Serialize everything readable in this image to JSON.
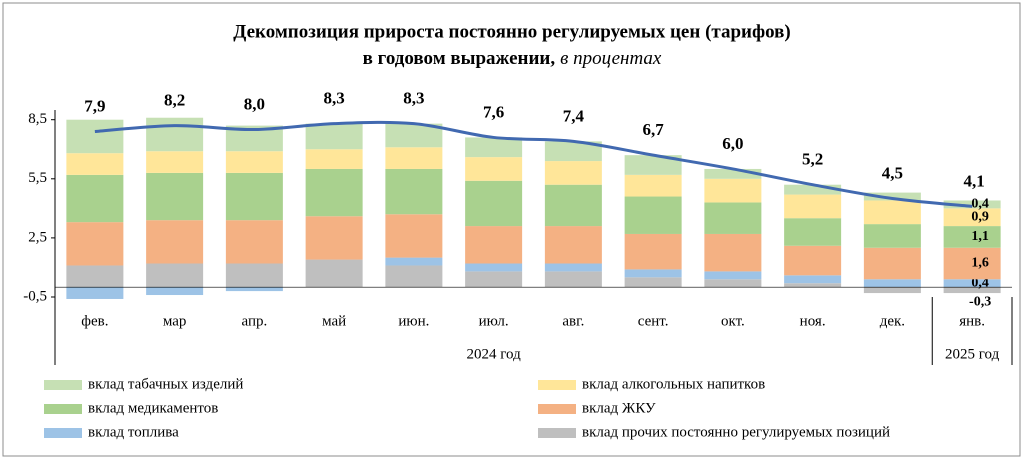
{
  "chart_data": {
    "type": "stacked_bar_line",
    "title": [
      "Декомпозиция прироста постоянно регулируемых цен (тарифов)",
      "в годовом выражении,"
    ],
    "subtitle": "в процентах",
    "categories": [
      "фев.",
      "мар",
      "апр.",
      "май",
      "июн.",
      "июл.",
      "авг.",
      "сент.",
      "окт.",
      "ноя.",
      "дек.",
      "янв."
    ],
    "groups": [
      {
        "label": "2024 год",
        "count": 11
      },
      {
        "label": "2025 год",
        "count": 1
      }
    ],
    "ylim": [
      -0.5,
      9.5
    ],
    "yticks": [
      {
        "value": -0.5,
        "label": "-0,5"
      },
      {
        "value": 2.5,
        "label": "2,5"
      },
      {
        "value": 5.5,
        "label": "5,5"
      },
      {
        "value": 8.5,
        "label": "8,5"
      }
    ],
    "series": [
      {
        "name": "вклад прочих постоянно регулируемых позиций",
        "color": "#bfbfbf",
        "values": [
          1.1,
          1.2,
          1.2,
          1.4,
          1.1,
          0.8,
          0.8,
          0.5,
          0.4,
          0.2,
          -0.3,
          -0.3
        ],
        "value_labels": [
          null,
          null,
          null,
          null,
          null,
          null,
          null,
          null,
          null,
          null,
          null,
          "-0,3"
        ]
      },
      {
        "name": "вклад топлива",
        "color": "#9dc3e6",
        "values": [
          -0.6,
          -0.4,
          -0.2,
          0.0,
          0.4,
          0.4,
          0.4,
          0.4,
          0.4,
          0.4,
          0.4,
          0.4
        ],
        "value_labels": [
          null,
          null,
          null,
          null,
          null,
          null,
          null,
          null,
          null,
          null,
          null,
          "0,4"
        ]
      },
      {
        "name": "вклад ЖКУ",
        "color": "#f4b183",
        "values": [
          2.2,
          2.2,
          2.2,
          2.2,
          2.2,
          1.9,
          1.9,
          1.8,
          1.9,
          1.5,
          1.6,
          1.6
        ],
        "value_labels": [
          null,
          null,
          null,
          null,
          null,
          null,
          null,
          null,
          null,
          null,
          null,
          "1,6"
        ]
      },
      {
        "name": "вклад медикаментов",
        "color": "#a9d18e",
        "values": [
          2.4,
          2.4,
          2.4,
          2.4,
          2.3,
          2.3,
          2.1,
          1.9,
          1.6,
          1.4,
          1.2,
          1.1
        ],
        "value_labels": [
          null,
          null,
          null,
          null,
          null,
          null,
          null,
          null,
          null,
          null,
          null,
          "1,1"
        ]
      },
      {
        "name": "вклад алкогольных напитков",
        "color": "#ffe699",
        "values": [
          1.1,
          1.1,
          1.1,
          1.0,
          1.1,
          1.2,
          1.2,
          1.1,
          1.2,
          1.2,
          1.2,
          0.9
        ],
        "value_labels": [
          null,
          null,
          null,
          null,
          null,
          null,
          null,
          null,
          null,
          null,
          null,
          "0,9"
        ]
      },
      {
        "name": "вклад табачных изделий",
        "color": "#c6e0b4",
        "values": [
          1.7,
          1.7,
          1.3,
          1.3,
          1.2,
          1.0,
          1.0,
          1.0,
          0.5,
          0.5,
          0.4,
          0.4
        ],
        "value_labels": [
          null,
          null,
          null,
          null,
          null,
          null,
          null,
          null,
          null,
          null,
          null,
          "0,4"
        ]
      }
    ],
    "legend_order": [
      5,
      4,
      3,
      2,
      1,
      0
    ],
    "line": {
      "color": "#4169b0",
      "values": [
        7.9,
        8.2,
        8.0,
        8.3,
        8.3,
        7.6,
        7.4,
        6.7,
        6.0,
        5.2,
        4.5,
        4.1
      ],
      "value_labels": [
        "7,9",
        "8,2",
        "8,0",
        "8,3",
        "8,3",
        "7,6",
        "7,4",
        "6,7",
        "6,0",
        "5,2",
        "4,5",
        "4,1"
      ]
    }
  }
}
